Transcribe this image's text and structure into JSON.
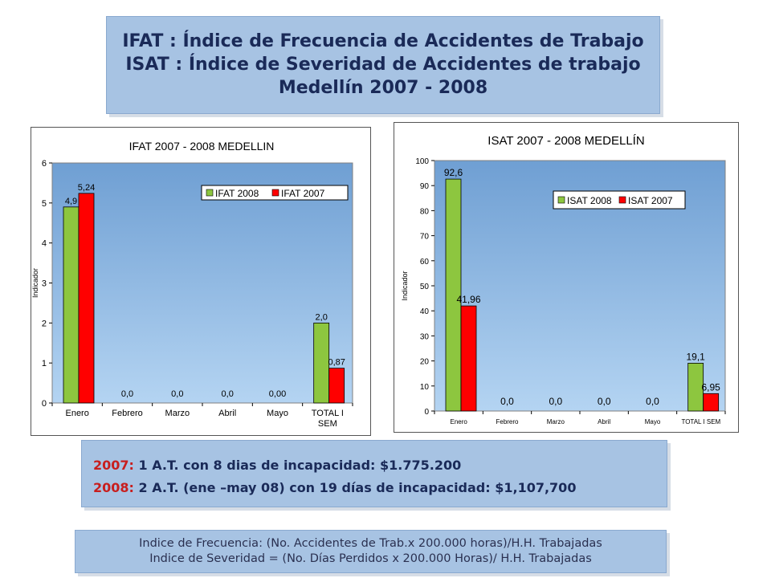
{
  "header": {
    "line1": "IFAT : Índice de Frecuencia  de Accidentes de Trabajo",
    "line2": "ISAT : Índice de Severidad  de Accidentes de trabajo",
    "line3": "Medellín 2007 - 2008"
  },
  "notes": {
    "row1_year": "2007:",
    "row1_text": " 1 A.T.  con 8 dias de incapacidad: $1.775.200",
    "row2_year": "2008:",
    "row2_text": "  2 A.T. (ene –may 08)  con 19 días de incapacidad:  $1,107,700"
  },
  "formulas": {
    "line1": "Indice de Frecuencia: (No. Accidentes de Trab.x 200.000 horas)/H.H. Trabajadas",
    "line2": "Indice de Severidad = (No. Días Perdidos x 200.000 Horas)/ H.H. Trabajadas"
  },
  "colors": {
    "series_2008": "#8dc63f",
    "series_2007": "#ff0000",
    "plot_bg_top": "#6f9fd3",
    "plot_bg_bottom": "#b4d4f2"
  },
  "chart_data": [
    {
      "type": "bar",
      "title": "IFAT 2007 - 2008 MEDELLIN",
      "ylabel": "Indicador",
      "xlabel": "",
      "ylim": [
        0,
        6
      ],
      "yticks": [
        "0",
        "1",
        "2",
        "3",
        "4",
        "5",
        "6"
      ],
      "categories": [
        "Enero",
        "Febrero",
        "Marzo",
        "Abril",
        "Mayo",
        "TOTAL I SEM"
      ],
      "legend_position": "top-right",
      "series": [
        {
          "name": "IFAT 2008",
          "values": [
            4.9,
            0,
            0,
            0,
            0,
            2.0
          ],
          "labels": [
            "4,9",
            "0,0",
            "0,0",
            "0,0",
            "0,00",
            "2,0"
          ]
        },
        {
          "name": "IFAT 2007",
          "values": [
            5.24,
            null,
            null,
            null,
            null,
            0.87
          ],
          "labels": [
            "5,24",
            "",
            "",
            "",
            "",
            "0,87"
          ]
        }
      ]
    },
    {
      "type": "bar",
      "title": "ISAT 2007 - 2008 MEDELLÍN",
      "ylabel": "Indicador",
      "xlabel": "",
      "ylim": [
        0,
        100
      ],
      "yticks": [
        "0",
        "10",
        "20",
        "30",
        "40",
        "50",
        "60",
        "70",
        "80",
        "90",
        "100"
      ],
      "categories": [
        "Enero",
        "Febrero",
        "Marzo",
        "Abril",
        "Mayo",
        "TOTAL I SEM"
      ],
      "legend_position": "top-right",
      "series": [
        {
          "name": "ISAT 2008",
          "values": [
            92.6,
            0,
            0,
            0,
            0,
            19.1
          ],
          "labels": [
            "92,6",
            "0,0",
            "0,0",
            "0,0",
            "0,0",
            "19,1"
          ]
        },
        {
          "name": "ISAT 2007",
          "values": [
            41.96,
            null,
            null,
            null,
            null,
            6.95
          ],
          "labels": [
            "41,96",
            "",
            "",
            "",
            "",
            "6,95"
          ]
        }
      ]
    }
  ]
}
